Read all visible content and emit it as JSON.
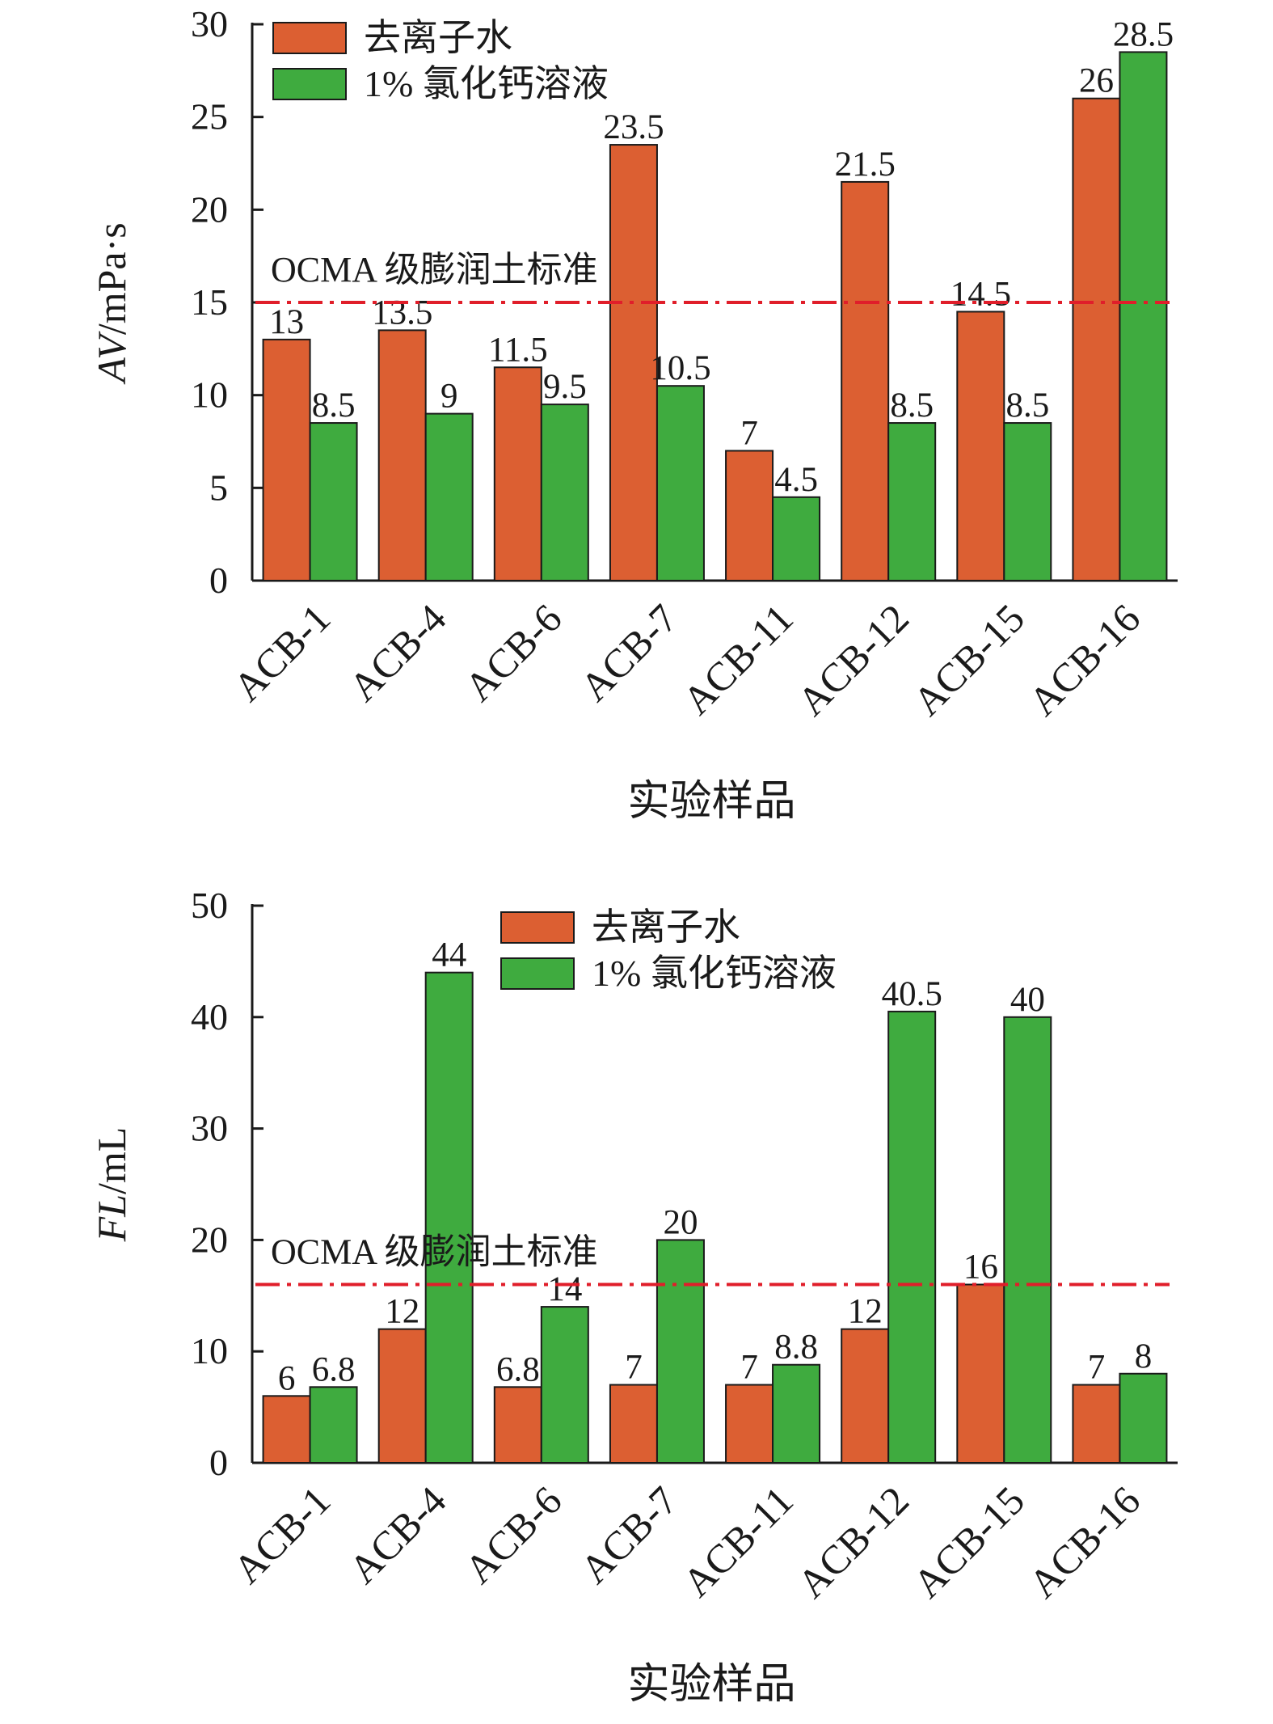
{
  "chart_data": [
    {
      "type": "bar",
      "categories": [
        "ACB-1",
        "ACB-4",
        "ACB-6",
        "ACB-7",
        "ACB-11",
        "ACB-12",
        "ACB-15",
        "ACB-16"
      ],
      "series": [
        {
          "name": "去离子水",
          "values": [
            13,
            13.5,
            11.5,
            23.5,
            7,
            21.5,
            14.5,
            26
          ],
          "labels": [
            "13",
            "13.5",
            "11.5",
            "23.5",
            "7",
            "21.5",
            "14.5",
            "26"
          ],
          "color": "#dc5f32"
        },
        {
          "name": "1% 氯化钙溶液",
          "values": [
            8.5,
            9,
            9.5,
            10.5,
            4.5,
            8.5,
            8.5,
            28.5
          ],
          "labels": [
            "8.5",
            "9",
            "9.5",
            "10.5",
            "4.5",
            "8.5",
            "8.5",
            "28.5"
          ],
          "color": "#3fab3f"
        }
      ],
      "ylabel_italic": "AV",
      "ylabel_unit": "/mPa·s",
      "xlabel": "实验样品",
      "ylim": [
        0,
        30
      ],
      "yticks": [
        0,
        5,
        10,
        15,
        20,
        25,
        30
      ],
      "reference_line": {
        "value": 15,
        "label": "OCMA 级膨润土标准",
        "color": "#e01e2a"
      },
      "legend_position": "top-left"
    },
    {
      "type": "bar",
      "categories": [
        "ACB-1",
        "ACB-4",
        "ACB-6",
        "ACB-7",
        "ACB-11",
        "ACB-12",
        "ACB-15",
        "ACB-16"
      ],
      "series": [
        {
          "name": "去离子水",
          "values": [
            6,
            12,
            6.8,
            7,
            7,
            12,
            16,
            7
          ],
          "labels": [
            "6",
            "12",
            "6.8",
            "7",
            "7",
            "12",
            "16",
            "7"
          ],
          "color": "#dc5f32"
        },
        {
          "name": "1% 氯化钙溶液",
          "values": [
            6.8,
            44,
            14,
            20,
            8.8,
            40.5,
            40,
            8
          ],
          "labels": [
            "6.8",
            "44",
            "14",
            "20",
            "8.8",
            "40.5",
            "40",
            "8"
          ],
          "color": "#3fab3f"
        }
      ],
      "ylabel_italic": "FL",
      "ylabel_unit": "/mL",
      "xlabel": "实验样品",
      "ylim": [
        0,
        50
      ],
      "yticks": [
        0,
        10,
        20,
        30,
        40,
        50
      ],
      "reference_line": {
        "value": 16,
        "label": "OCMA 级膨润土标准",
        "color": "#e01e2a"
      },
      "legend_position": "top-center"
    }
  ]
}
